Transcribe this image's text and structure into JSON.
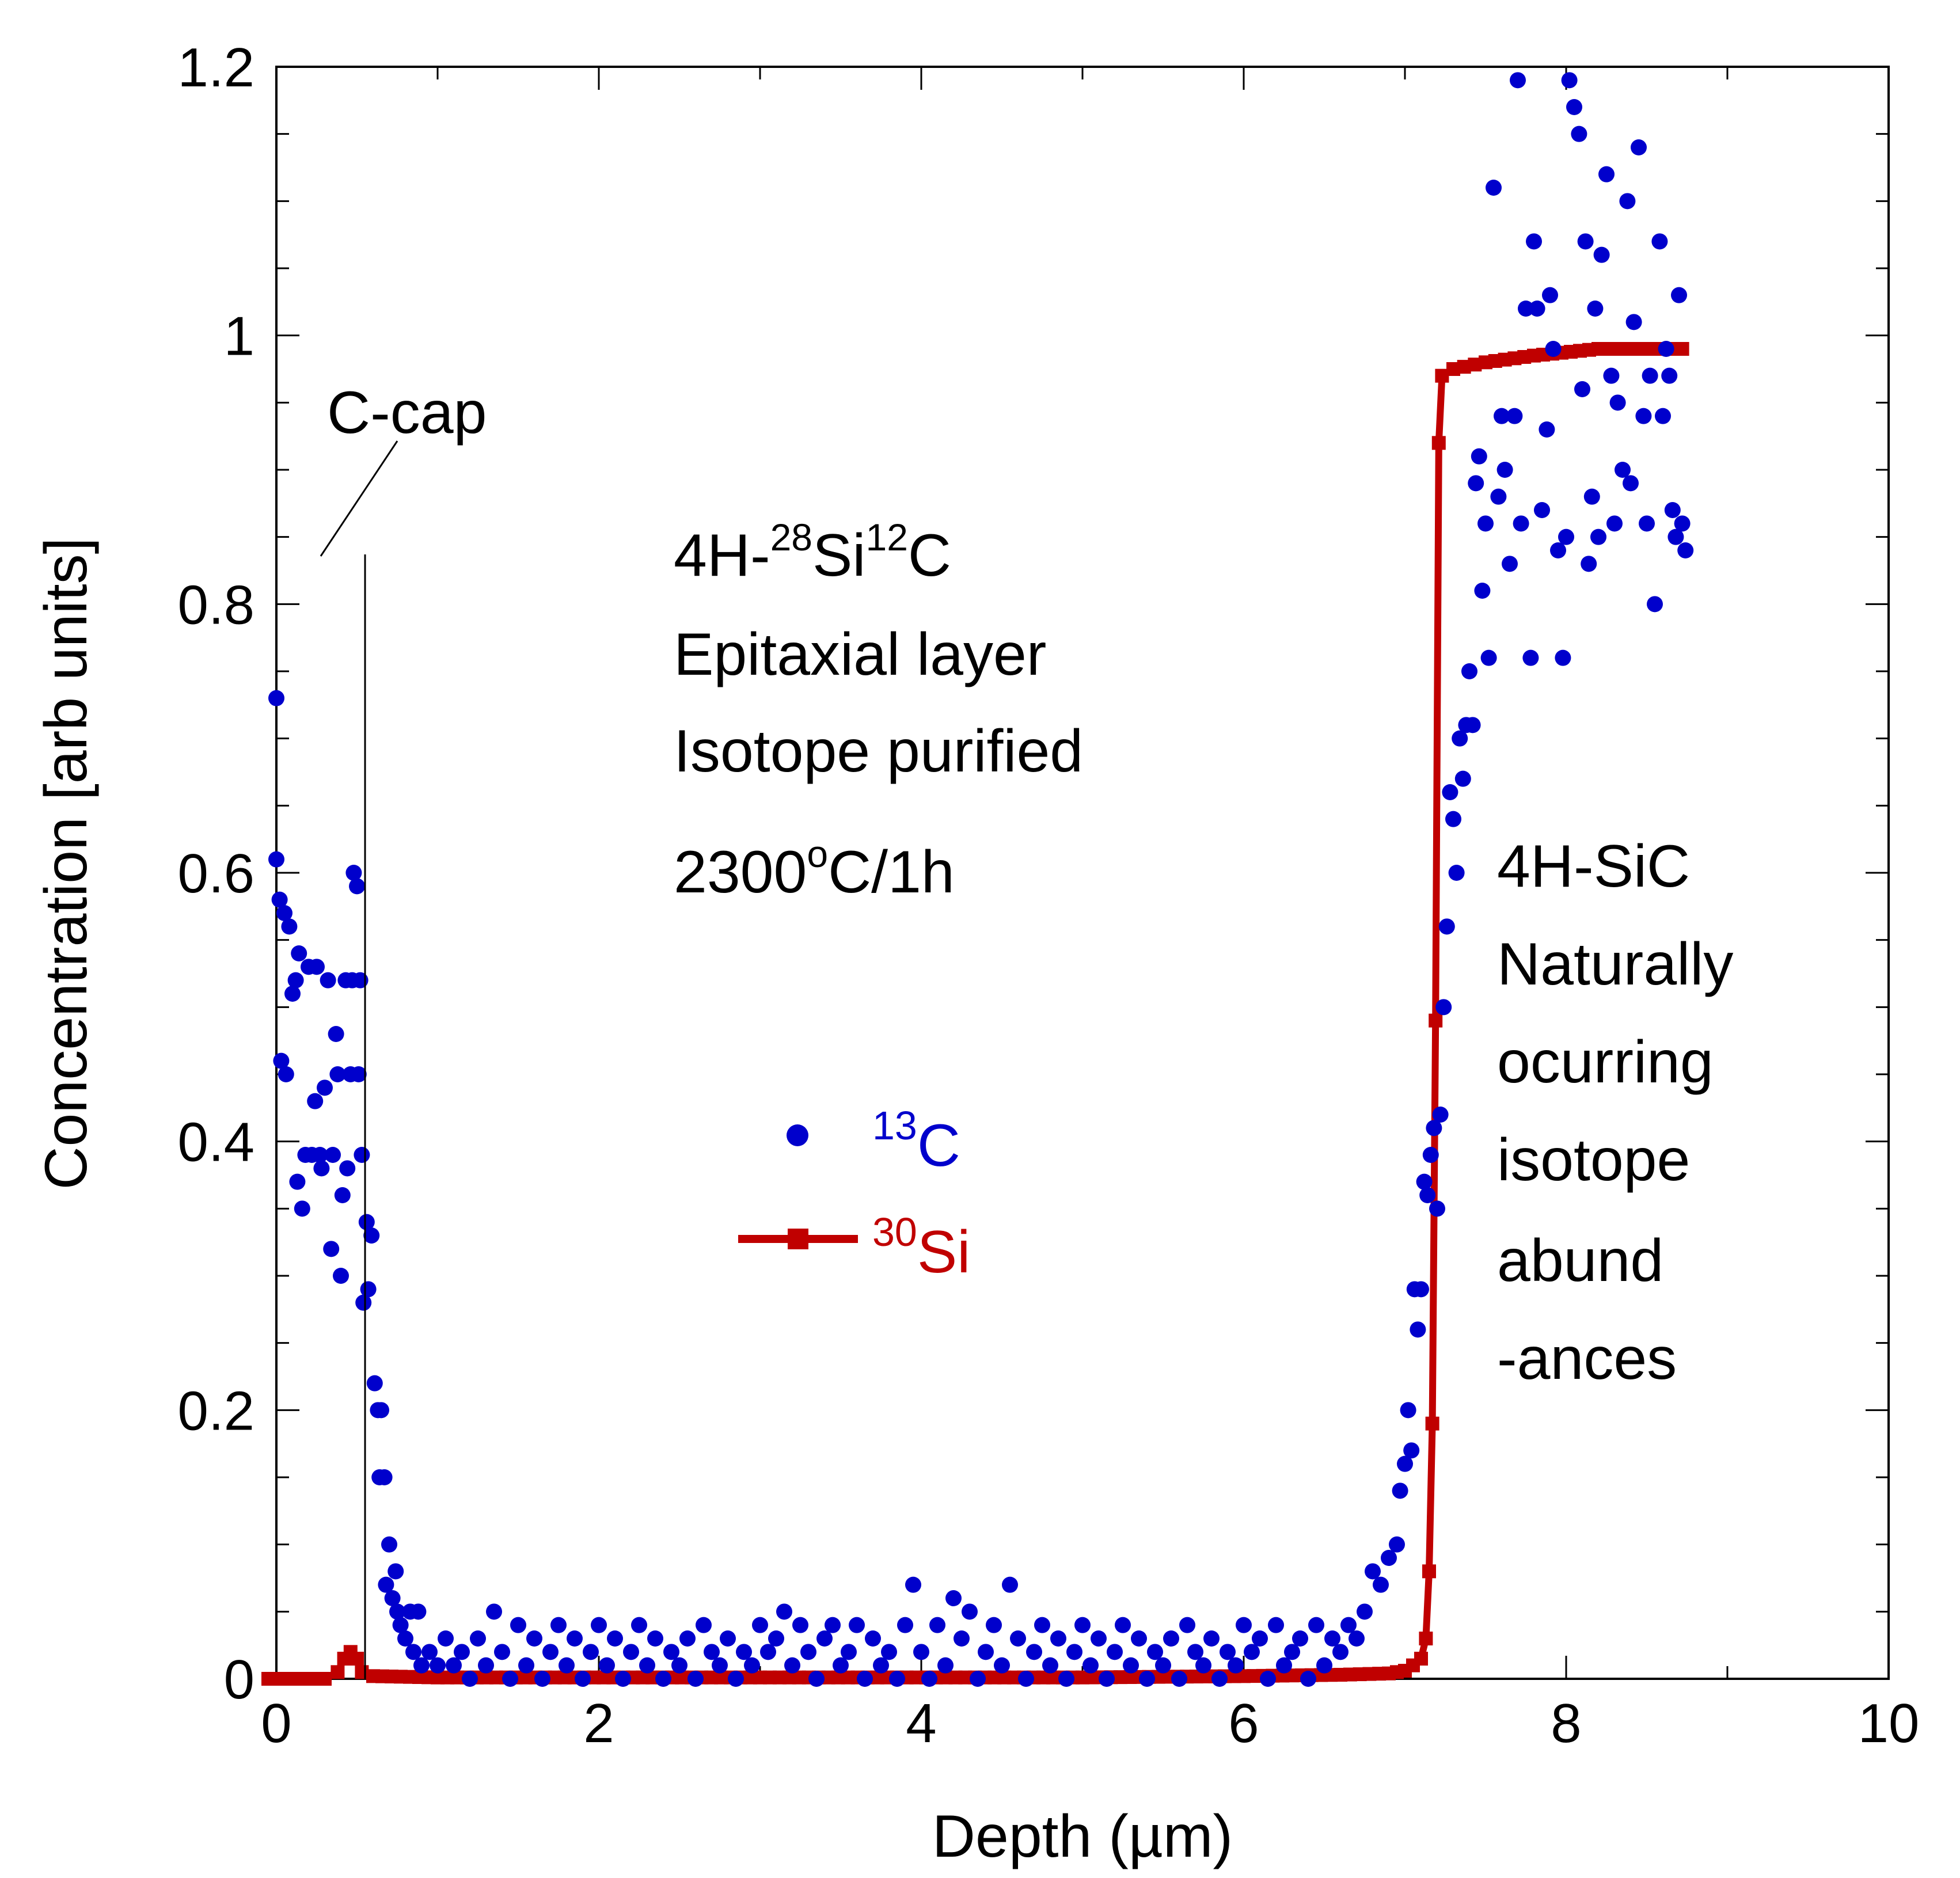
{
  "chart_data": {
    "type": "scatter",
    "title": "",
    "xlabel": "Depth (µm)",
    "ylabel": "Concentration [arb units]",
    "xlim": [
      0,
      10
    ],
    "ylim": [
      0,
      1.2
    ],
    "x_ticks": [
      "0",
      "2",
      "4",
      "6",
      "8",
      "10"
    ],
    "y_ticks": [
      "0",
      "0.2",
      "0.4",
      "0.6",
      "0.8",
      "1",
      "1.2"
    ],
    "colors": {
      "c13": "#0000cc",
      "si30": "#c00000",
      "axis": "#000000"
    },
    "annotations": {
      "c_cap": "C-cap",
      "epi_line1_pre": "4H-",
      "epi_line1_sup1": "28",
      "epi_line1_mid": "Si",
      "epi_line1_sup2": "12",
      "epi_line1_post": "C",
      "epi_line2": "Epitaxial layer",
      "epi_line3": "Isotope purified",
      "epi_line4_pre": "2300",
      "epi_line4_sup": "o",
      "epi_line4_post": "C/1h",
      "sub_line1": "4H-SiC",
      "sub_line2": "Naturally",
      "sub_line3": "ocurring",
      "sub_line4": "isotope",
      "sub_line5": "abund",
      "sub_line6": "-ances"
    },
    "legend": [
      {
        "name_sup": "13",
        "name": "C",
        "marker": "circle"
      },
      {
        "name_sup": "30",
        "name": "Si",
        "marker": "square-line"
      }
    ],
    "series": [
      {
        "name": "13C",
        "marker": "circle",
        "points": [
          [
            0.0,
            0.73
          ],
          [
            0.0,
            0.61
          ],
          [
            0.02,
            0.58
          ],
          [
            0.03,
            0.46
          ],
          [
            0.05,
            0.57
          ],
          [
            0.06,
            0.45
          ],
          [
            0.08,
            0.56
          ],
          [
            0.1,
            0.51
          ],
          [
            0.12,
            0.52
          ],
          [
            0.13,
            0.37
          ],
          [
            0.14,
            0.54
          ],
          [
            0.16,
            0.35
          ],
          [
            0.18,
            0.39
          ],
          [
            0.2,
            0.53
          ],
          [
            0.22,
            0.39
          ],
          [
            0.24,
            0.43
          ],
          [
            0.25,
            0.53
          ],
          [
            0.27,
            0.39
          ],
          [
            0.28,
            0.38
          ],
          [
            0.3,
            0.44
          ],
          [
            0.32,
            0.52
          ],
          [
            0.34,
            0.32
          ],
          [
            0.35,
            0.39
          ],
          [
            0.37,
            0.48
          ],
          [
            0.38,
            0.45
          ],
          [
            0.4,
            0.3
          ],
          [
            0.41,
            0.36
          ],
          [
            0.43,
            0.52
          ],
          [
            0.44,
            0.38
          ],
          [
            0.46,
            0.45
          ],
          [
            0.47,
            0.52
          ],
          [
            0.48,
            0.6
          ],
          [
            0.5,
            0.59
          ],
          [
            0.51,
            0.45
          ],
          [
            0.52,
            0.52
          ],
          [
            0.53,
            0.39
          ],
          [
            0.54,
            0.28
          ],
          [
            0.56,
            0.34
          ],
          [
            0.57,
            0.29
          ],
          [
            0.59,
            0.33
          ],
          [
            0.61,
            0.22
          ],
          [
            0.63,
            0.2
          ],
          [
            0.64,
            0.15
          ],
          [
            0.65,
            0.2
          ],
          [
            0.67,
            0.15
          ],
          [
            0.68,
            0.07
          ],
          [
            0.7,
            0.1
          ],
          [
            0.72,
            0.06
          ],
          [
            0.74,
            0.08
          ],
          [
            0.75,
            0.05
          ],
          [
            0.77,
            0.04
          ],
          [
            0.8,
            0.03
          ],
          [
            0.83,
            0.05
          ],
          [
            0.85,
            0.02
          ],
          [
            0.88,
            0.05
          ],
          [
            0.9,
            0.01
          ],
          [
            0.95,
            0.02
          ],
          [
            1.0,
            0.01
          ],
          [
            1.05,
            0.03
          ],
          [
            1.1,
            0.01
          ],
          [
            1.15,
            0.02
          ],
          [
            1.2,
            0.0
          ],
          [
            1.25,
            0.03
          ],
          [
            1.3,
            0.01
          ],
          [
            1.35,
            0.05
          ],
          [
            1.4,
            0.02
          ],
          [
            1.45,
            0.0
          ],
          [
            1.5,
            0.04
          ],
          [
            1.55,
            0.01
          ],
          [
            1.6,
            0.03
          ],
          [
            1.65,
            0.0
          ],
          [
            1.7,
            0.02
          ],
          [
            1.75,
            0.04
          ],
          [
            1.8,
            0.01
          ],
          [
            1.85,
            0.03
          ],
          [
            1.9,
            0.0
          ],
          [
            1.95,
            0.02
          ],
          [
            2.0,
            0.04
          ],
          [
            2.05,
            0.01
          ],
          [
            2.1,
            0.03
          ],
          [
            2.15,
            0.0
          ],
          [
            2.2,
            0.02
          ],
          [
            2.25,
            0.04
          ],
          [
            2.3,
            0.01
          ],
          [
            2.35,
            0.03
          ],
          [
            2.4,
            0.0
          ],
          [
            2.45,
            0.02
          ],
          [
            2.5,
            0.01
          ],
          [
            2.55,
            0.03
          ],
          [
            2.6,
            0.0
          ],
          [
            2.65,
            0.04
          ],
          [
            2.7,
            0.02
          ],
          [
            2.75,
            0.01
          ],
          [
            2.8,
            0.03
          ],
          [
            2.85,
            0.0
          ],
          [
            2.9,
            0.02
          ],
          [
            2.95,
            0.01
          ],
          [
            3.0,
            0.04
          ],
          [
            3.05,
            0.02
          ],
          [
            3.1,
            0.03
          ],
          [
            3.15,
            0.05
          ],
          [
            3.2,
            0.01
          ],
          [
            3.25,
            0.04
          ],
          [
            3.3,
            0.02
          ],
          [
            3.35,
            0.0
          ],
          [
            3.4,
            0.03
          ],
          [
            3.45,
            0.04
          ],
          [
            3.5,
            0.01
          ],
          [
            3.55,
            0.02
          ],
          [
            3.6,
            0.04
          ],
          [
            3.65,
            0.0
          ],
          [
            3.7,
            0.03
          ],
          [
            3.75,
            0.01
          ],
          [
            3.8,
            0.02
          ],
          [
            3.85,
            0.0
          ],
          [
            3.9,
            0.04
          ],
          [
            3.95,
            0.07
          ],
          [
            4.0,
            0.02
          ],
          [
            4.05,
            0.0
          ],
          [
            4.1,
            0.04
          ],
          [
            4.15,
            0.01
          ],
          [
            4.2,
            0.06
          ],
          [
            4.25,
            0.03
          ],
          [
            4.3,
            0.05
          ],
          [
            4.35,
            0.0
          ],
          [
            4.4,
            0.02
          ],
          [
            4.45,
            0.04
          ],
          [
            4.5,
            0.01
          ],
          [
            4.55,
            0.07
          ],
          [
            4.6,
            0.03
          ],
          [
            4.65,
            0.0
          ],
          [
            4.7,
            0.02
          ],
          [
            4.75,
            0.04
          ],
          [
            4.8,
            0.01
          ],
          [
            4.85,
            0.03
          ],
          [
            4.9,
            0.0
          ],
          [
            4.95,
            0.02
          ],
          [
            5.0,
            0.04
          ],
          [
            5.05,
            0.01
          ],
          [
            5.1,
            0.03
          ],
          [
            5.15,
            0.0
          ],
          [
            5.2,
            0.02
          ],
          [
            5.25,
            0.04
          ],
          [
            5.3,
            0.01
          ],
          [
            5.35,
            0.03
          ],
          [
            5.4,
            0.0
          ],
          [
            5.45,
            0.02
          ],
          [
            5.5,
            0.01
          ],
          [
            5.55,
            0.03
          ],
          [
            5.6,
            0.0
          ],
          [
            5.65,
            0.04
          ],
          [
            5.7,
            0.02
          ],
          [
            5.75,
            0.01
          ],
          [
            5.8,
            0.03
          ],
          [
            5.85,
            0.0
          ],
          [
            5.9,
            0.02
          ],
          [
            5.95,
            0.01
          ],
          [
            6.0,
            0.04
          ],
          [
            6.05,
            0.02
          ],
          [
            6.1,
            0.03
          ],
          [
            6.15,
            0.0
          ],
          [
            6.2,
            0.04
          ],
          [
            6.25,
            0.01
          ],
          [
            6.3,
            0.02
          ],
          [
            6.35,
            0.03
          ],
          [
            6.4,
            0.0
          ],
          [
            6.45,
            0.04
          ],
          [
            6.5,
            0.01
          ],
          [
            6.55,
            0.03
          ],
          [
            6.6,
            0.02
          ],
          [
            6.65,
            0.04
          ],
          [
            6.7,
            0.03
          ],
          [
            6.75,
            0.05
          ],
          [
            6.8,
            0.08
          ],
          [
            6.85,
            0.07
          ],
          [
            6.9,
            0.09
          ],
          [
            6.95,
            0.1
          ],
          [
            6.97,
            0.14
          ],
          [
            7.0,
            0.16
          ],
          [
            7.02,
            0.2
          ],
          [
            7.04,
            0.17
          ],
          [
            7.06,
            0.29
          ],
          [
            7.08,
            0.26
          ],
          [
            7.1,
            0.29
          ],
          [
            7.12,
            0.37
          ],
          [
            7.14,
            0.36
          ],
          [
            7.16,
            0.39
          ],
          [
            7.18,
            0.41
          ],
          [
            7.2,
            0.35
          ],
          [
            7.22,
            0.42
          ],
          [
            7.24,
            0.5
          ],
          [
            7.26,
            0.56
          ],
          [
            7.28,
            0.66
          ],
          [
            7.3,
            0.64
          ],
          [
            7.32,
            0.6
          ],
          [
            7.34,
            0.7
          ],
          [
            7.36,
            0.67
          ],
          [
            7.38,
            0.71
          ],
          [
            7.4,
            0.75
          ],
          [
            7.42,
            0.71
          ],
          [
            7.44,
            0.89
          ],
          [
            7.46,
            0.91
          ],
          [
            7.48,
            0.81
          ],
          [
            7.5,
            0.86
          ],
          [
            7.52,
            0.76
          ],
          [
            7.55,
            1.11
          ],
          [
            7.58,
            0.88
          ],
          [
            7.6,
            0.94
          ],
          [
            7.62,
            0.9
          ],
          [
            7.65,
            0.83
          ],
          [
            7.68,
            0.94
          ],
          [
            7.7,
            1.19
          ],
          [
            7.72,
            0.86
          ],
          [
            7.75,
            1.02
          ],
          [
            7.78,
            0.76
          ],
          [
            7.8,
            1.07
          ],
          [
            7.82,
            1.02
          ],
          [
            7.85,
            0.87
          ],
          [
            7.88,
            0.93
          ],
          [
            7.9,
            1.03
          ],
          [
            7.92,
            0.99
          ],
          [
            7.95,
            0.84
          ],
          [
            7.98,
            0.76
          ],
          [
            8.0,
            0.85
          ],
          [
            8.02,
            1.19
          ],
          [
            8.05,
            1.17
          ],
          [
            8.08,
            1.15
          ],
          [
            8.1,
            0.96
          ],
          [
            8.12,
            1.07
          ],
          [
            8.14,
            0.83
          ],
          [
            8.16,
            0.88
          ],
          [
            8.18,
            1.02
          ],
          [
            8.2,
            0.85
          ],
          [
            8.22,
            1.06
          ],
          [
            8.25,
            1.12
          ],
          [
            8.28,
            0.97
          ],
          [
            8.3,
            0.86
          ],
          [
            8.32,
            0.95
          ],
          [
            8.35,
            0.9
          ],
          [
            8.38,
            1.1
          ],
          [
            8.4,
            0.89
          ],
          [
            8.42,
            1.01
          ],
          [
            8.45,
            1.14
          ],
          [
            8.48,
            0.94
          ],
          [
            8.5,
            0.86
          ],
          [
            8.52,
            0.97
          ],
          [
            8.55,
            0.8
          ],
          [
            8.58,
            1.07
          ],
          [
            8.6,
            0.94
          ],
          [
            8.62,
            0.99
          ],
          [
            8.64,
            0.97
          ],
          [
            8.66,
            0.87
          ],
          [
            8.68,
            0.85
          ],
          [
            8.7,
            1.03
          ],
          [
            8.72,
            0.86
          ],
          [
            8.74,
            0.84
          ]
        ]
      },
      {
        "name": "30Si",
        "marker": "square-line",
        "points": [
          [
            -0.05,
            0.0
          ],
          [
            0.3,
            0.0
          ],
          [
            0.38,
            0.005
          ],
          [
            0.42,
            0.015
          ],
          [
            0.46,
            0.02
          ],
          [
            0.5,
            0.015
          ],
          [
            0.53,
            0.005
          ],
          [
            0.6,
            0.002
          ],
          [
            1.0,
            0.001
          ],
          [
            3.0,
            0.001
          ],
          [
            5.0,
            0.001
          ],
          [
            6.0,
            0.002
          ],
          [
            6.6,
            0.003
          ],
          [
            6.9,
            0.004
          ],
          [
            7.0,
            0.006
          ],
          [
            7.05,
            0.01
          ],
          [
            7.1,
            0.015
          ],
          [
            7.13,
            0.03
          ],
          [
            7.15,
            0.08
          ],
          [
            7.17,
            0.19
          ],
          [
            7.19,
            0.49
          ],
          [
            7.21,
            0.92
          ],
          [
            7.23,
            0.97
          ],
          [
            7.3,
            0.975
          ],
          [
            7.5,
            0.98
          ],
          [
            7.8,
            0.985
          ],
          [
            8.2,
            0.99
          ],
          [
            8.5,
            0.99
          ],
          [
            8.72,
            0.99
          ]
        ]
      }
    ]
  }
}
